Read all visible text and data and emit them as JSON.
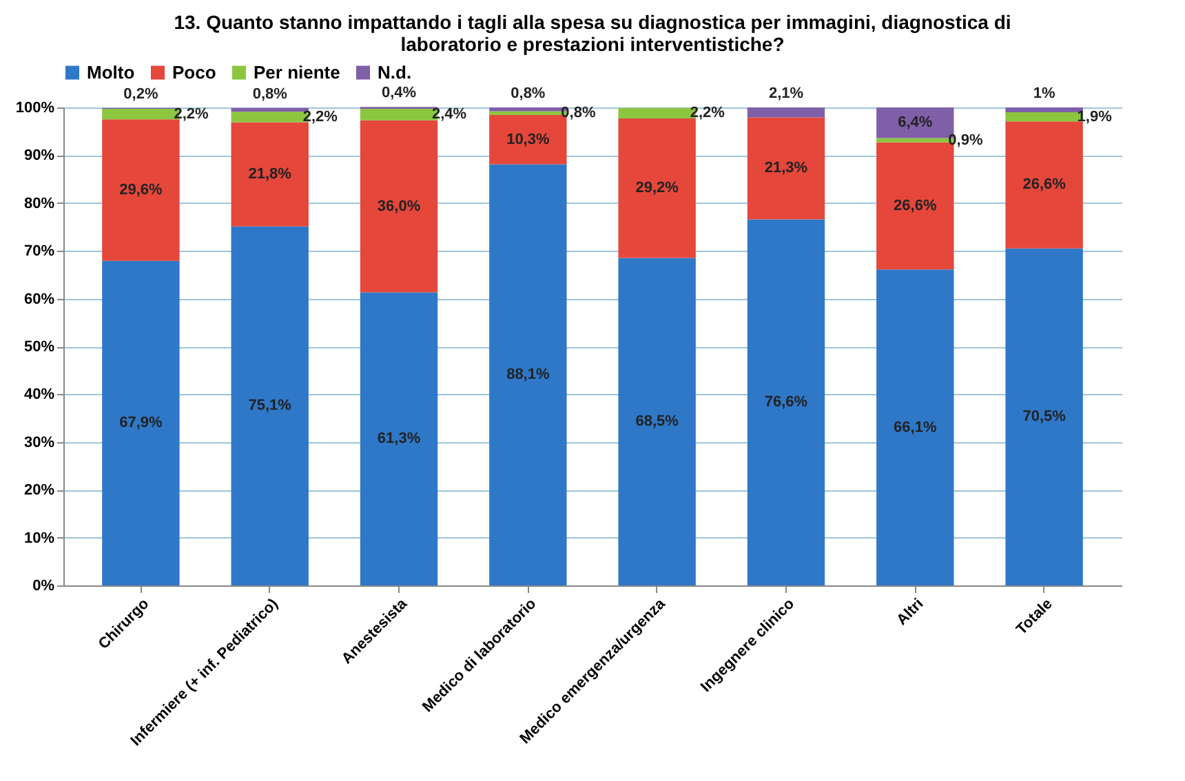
{
  "chart_data": {
    "type": "bar",
    "title": "13. Quanto stanno impattando i tagli alla spesa su diagnostica per immagini, diagnostica di laboratorio e prestazioni interventistiche?",
    "categories": [
      "Chirurgo",
      "Infermiere (+ inf. Pediatrico)",
      "Anestesista",
      "Medico di laboratorio",
      "Medico emergenza/urgenza",
      "Ingegnere clinico",
      "Altri",
      "Totale"
    ],
    "stacked": true,
    "legend": "top",
    "grid": "y",
    "ylim": [
      0,
      100
    ],
    "yticks": [
      {
        "value": 0,
        "label": "0%"
      },
      {
        "value": 10,
        "label": "10%"
      },
      {
        "value": 20,
        "label": "20%"
      },
      {
        "value": 30,
        "label": "30%"
      },
      {
        "value": 40,
        "label": "40%"
      },
      {
        "value": 50,
        "label": "50%"
      },
      {
        "value": 60,
        "label": "60%"
      },
      {
        "value": 70,
        "label": "70%"
      },
      {
        "value": 80,
        "label": "80%"
      },
      {
        "value": 90,
        "label": "90%"
      },
      {
        "value": 100,
        "label": "100%"
      }
    ],
    "series": [
      {
        "name": "Molto",
        "color": "#2f78c8",
        "values": [
          67.9,
          75.1,
          61.3,
          88.1,
          68.5,
          76.6,
          66.1,
          70.5
        ],
        "value_labels": [
          "67,9%",
          "75,1%",
          "61,3%",
          "88,1%",
          "68,5%",
          "76,6%",
          "66,1%",
          "70,5%"
        ]
      },
      {
        "name": "Poco",
        "color": "#e5473b",
        "values": [
          29.6,
          21.8,
          36.0,
          10.3,
          29.2,
          21.3,
          26.6,
          26.6
        ],
        "value_labels": [
          "29,6%",
          "21,8%",
          "36,0%",
          "10,3%",
          "29,2%",
          "21,3%",
          "26,6%",
          "26,6%"
        ]
      },
      {
        "name": "Per niente",
        "color": "#8cc63f",
        "values": [
          2.2,
          2.2,
          2.4,
          0.8,
          2.2,
          null,
          0.9,
          1.9
        ],
        "value_labels": [
          "2,2%",
          "2,2%",
          "2,4%",
          "0,8%",
          "2,2%",
          null,
          "0,9%",
          "1,9%"
        ]
      },
      {
        "name": "N.d.",
        "color": "#7f5fa8",
        "values": [
          0.2,
          0.8,
          0.4,
          0.8,
          null,
          2.1,
          6.4,
          1
        ],
        "value_labels": [
          "0,2%",
          "0,8%",
          "0,4%",
          "0,8%",
          null,
          "2,1%",
          "6,4%",
          "1%"
        ]
      }
    ]
  }
}
